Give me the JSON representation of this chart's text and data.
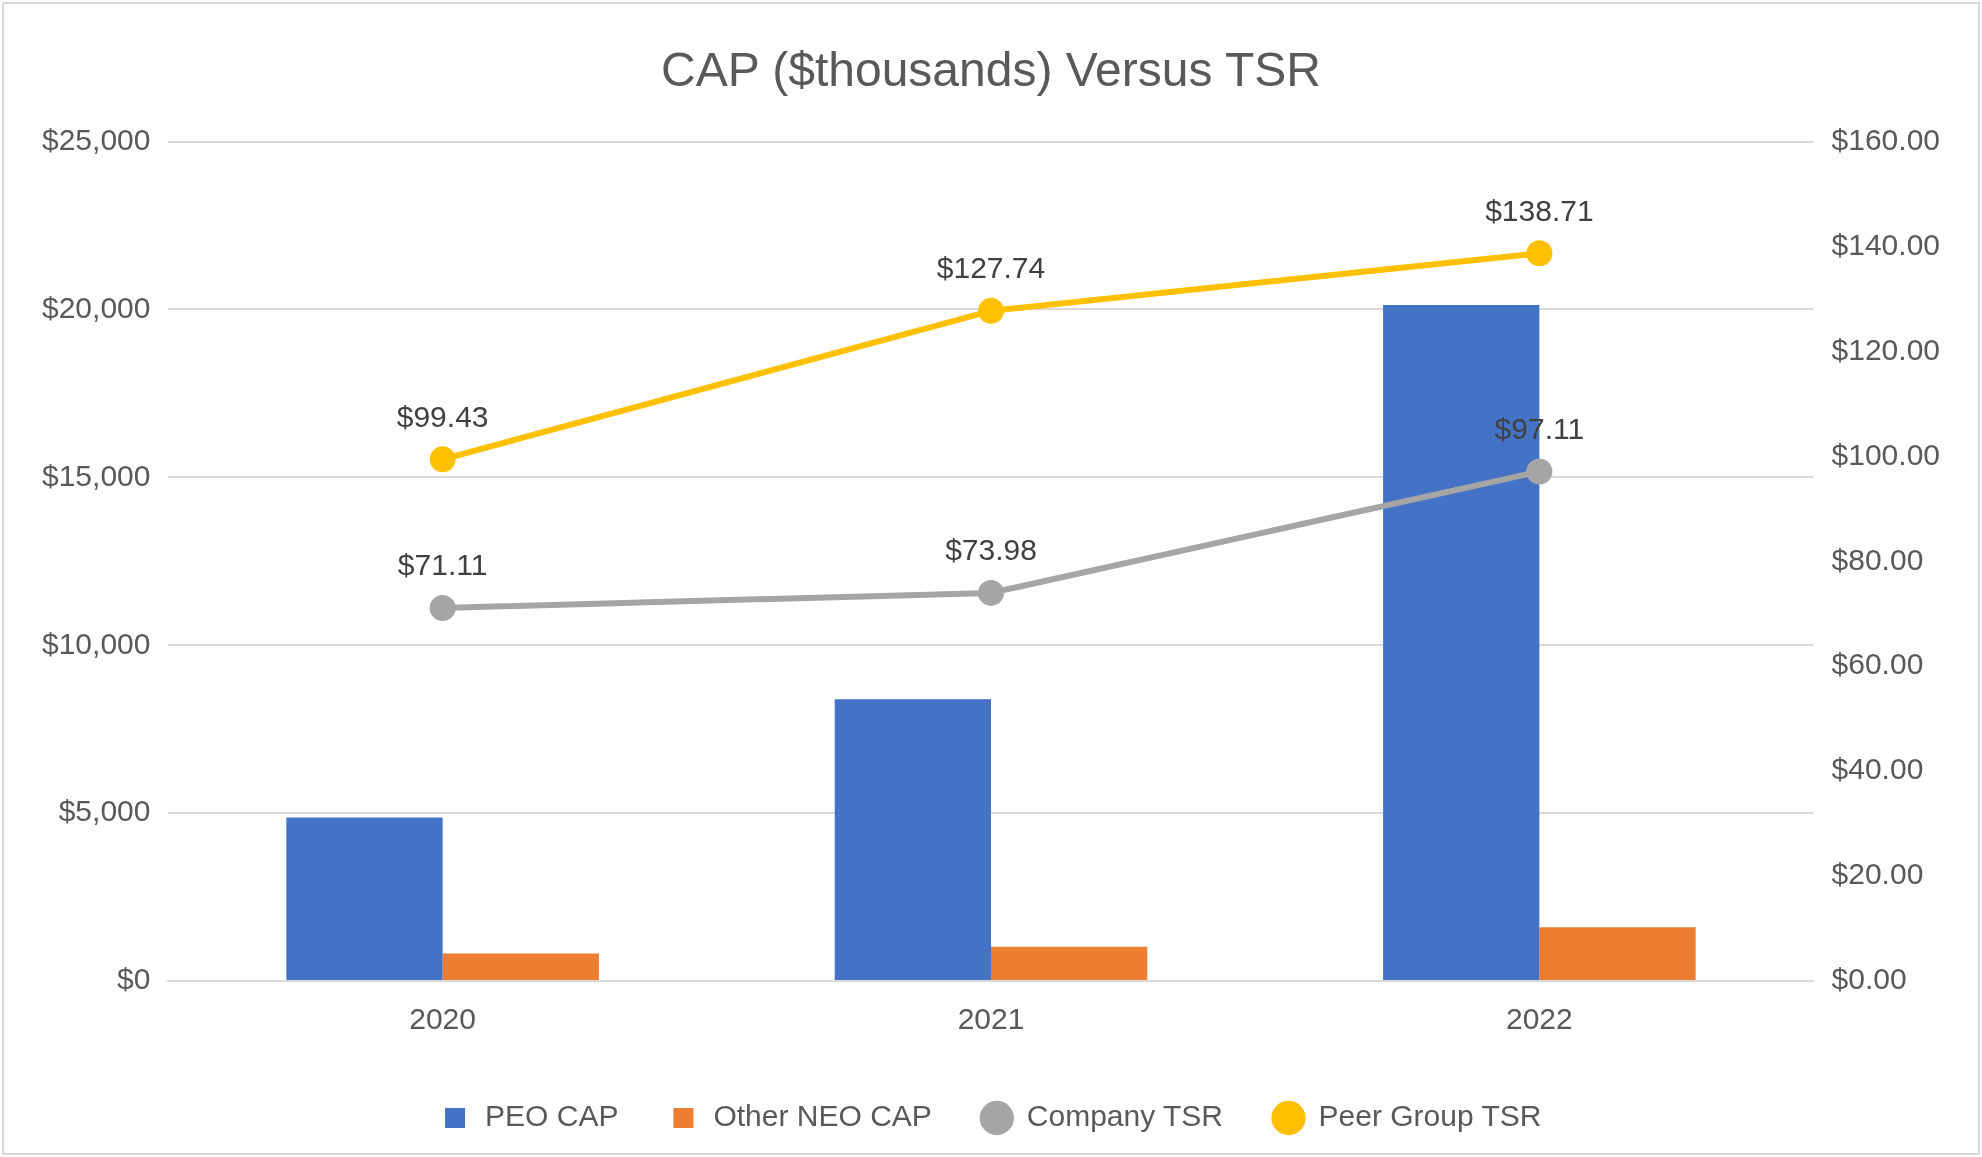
{
  "chart_data": {
    "type": "bar",
    "title": "CAP ($thousands) Versus TSR",
    "categories": [
      "2020",
      "2021",
      "2022"
    ],
    "series": [
      {
        "name": "PEO CAP",
        "color": "#4472c4",
        "values": [
          4870,
          8390,
          20130
        ]
      },
      {
        "name": "Other NEO CAP",
        "color": "#ed7d31",
        "values": [
          820,
          1020,
          1600
        ]
      },
      {
        "name": "Company TSR",
        "type": "line",
        "axis": "y2",
        "color": "#a5a5a5",
        "values": [
          71.11,
          73.98,
          97.11
        ],
        "value_labels": [
          "$71.11",
          "$73.98",
          "$97.11"
        ]
      },
      {
        "name": "Peer Group TSR",
        "type": "line",
        "axis": "y2",
        "color": "#ffc000",
        "values": [
          99.43,
          127.74,
          138.71
        ],
        "value_labels": [
          "$99.43",
          "$127.74",
          "$138.71"
        ]
      }
    ],
    "ylim": [
      0,
      25000
    ],
    "yticks": [
      {
        "value": 0,
        "label": "$0"
      },
      {
        "value": 5000,
        "label": "$5,000"
      },
      {
        "value": 10000,
        "label": "$10,000"
      },
      {
        "value": 15000,
        "label": "$15,000"
      },
      {
        "value": 20000,
        "label": "$20,000"
      },
      {
        "value": 25000,
        "label": "$25,000"
      }
    ],
    "y2lim": [
      0,
      160
    ],
    "y2ticks": [
      {
        "value": 0,
        "label": "$0.00"
      },
      {
        "value": 20,
        "label": "$20.00"
      },
      {
        "value": 40,
        "label": "$40.00"
      },
      {
        "value": 60,
        "label": "$60.00"
      },
      {
        "value": 80,
        "label": "$80.00"
      },
      {
        "value": 100,
        "label": "$100.00"
      },
      {
        "value": 120,
        "label": "$120.00"
      },
      {
        "value": 140,
        "label": "$140.00"
      },
      {
        "value": 160,
        "label": "$160.00"
      }
    ],
    "grid": "y",
    "legend": "bottom",
    "marker": "circle",
    "line_style": "solid"
  }
}
